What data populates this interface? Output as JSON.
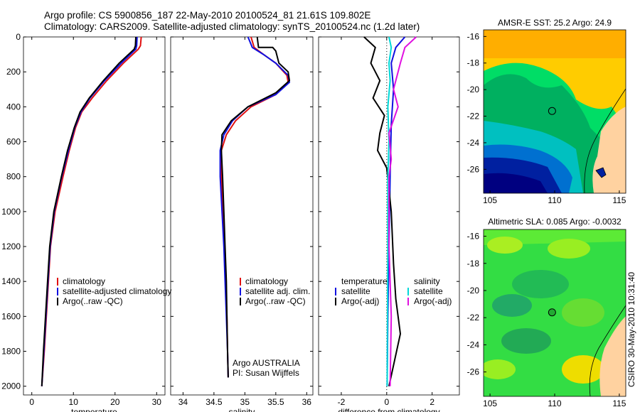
{
  "header": {
    "line1": "Argo profile: CS 5900856_187 22-May-2010 20100524_81 21.61S 109.802E",
    "line2": "Climatology: CARS2009. Satellite-adjusted climatology: synTS_20100524.nc (1.2d later)"
  },
  "side_label": "CSIRO 30-May-2010 10:31:40",
  "colors": {
    "climatology": "#e01010",
    "satellite": "#1010e0",
    "argo": "#000000",
    "sat_diff": "#00d8d8",
    "argo_adj": "#e010e0"
  },
  "chart_data": [
    {
      "type": "line",
      "xlabel": "temperature",
      "xlim": [
        -2,
        32
      ],
      "ylim": [
        0,
        2050
      ],
      "y_reversed": true,
      "xticks": [
        0,
        10,
        20,
        30
      ],
      "yticks": [
        0,
        200,
        400,
        600,
        800,
        1000,
        1200,
        1400,
        1600,
        1800,
        2000
      ],
      "legend": [
        "climatology",
        "satellite-adjusted climatology",
        "Argo(..raw -QC)"
      ],
      "series": [
        {
          "name": "climatology",
          "color": "#e01010",
          "points": [
            [
              26.3,
              0
            ],
            [
              26.1,
              50
            ],
            [
              25.6,
              70
            ],
            [
              22,
              150
            ],
            [
              18,
              250
            ],
            [
              14.5,
              350
            ],
            [
              12,
              430
            ],
            [
              10.5,
              520
            ],
            [
              9,
              650
            ],
            [
              7.5,
              800
            ],
            [
              5.6,
              1000
            ],
            [
              4.5,
              1200
            ],
            [
              4,
              1400
            ],
            [
              3.5,
              1600
            ],
            [
              3,
              1800
            ],
            [
              2.4,
              2000
            ]
          ]
        },
        {
          "name": "satellite-adjusted climatology",
          "color": "#1010e0",
          "points": [
            [
              25.3,
              0
            ],
            [
              25.2,
              50
            ],
            [
              25,
              70
            ],
            [
              21.5,
              150
            ],
            [
              17.5,
              250
            ],
            [
              14,
              350
            ],
            [
              11.8,
              430
            ],
            [
              10.3,
              520
            ],
            [
              8.8,
              650
            ],
            [
              7.2,
              800
            ],
            [
              5.4,
              1000
            ],
            [
              4.4,
              1200
            ],
            [
              3.9,
              1400
            ],
            [
              3.4,
              1600
            ],
            [
              2.9,
              1800
            ],
            [
              2.4,
              2000
            ]
          ]
        },
        {
          "name": "Argo(..raw -QC)",
          "color": "#000000",
          "points": [
            [
              25,
              0
            ],
            [
              24.9,
              50
            ],
            [
              24.6,
              70
            ],
            [
              21,
              150
            ],
            [
              17.2,
              250
            ],
            [
              13.8,
              350
            ],
            [
              11.6,
              430
            ],
            [
              10.2,
              520
            ],
            [
              8.6,
              650
            ],
            [
              7.1,
              800
            ],
            [
              5.3,
              1000
            ],
            [
              4.3,
              1200
            ],
            [
              3.8,
              1400
            ],
            [
              3.3,
              1600
            ],
            [
              2.8,
              1800
            ],
            [
              2.4,
              2000
            ]
          ]
        }
      ]
    },
    {
      "type": "line",
      "xlabel": "salinity",
      "xlim": [
        33.8,
        36.1
      ],
      "ylim": [
        0,
        2050
      ],
      "y_reversed": true,
      "xticks": [
        34,
        34.5,
        35,
        35.5,
        36
      ],
      "legend": [
        "climatology",
        "satellite adj. clim.",
        "Argo(..raw -QC)"
      ],
      "annotation": [
        "Argo AUSTRALIA",
        "PI: Susan Wijffels"
      ],
      "series": [
        {
          "name": "climatology",
          "color": "#e01010",
          "points": [
            [
              35.1,
              0
            ],
            [
              35.15,
              60
            ],
            [
              35.3,
              100
            ],
            [
              35.5,
              150
            ],
            [
              35.68,
              220
            ],
            [
              35.7,
              260
            ],
            [
              35.5,
              330
            ],
            [
              35.1,
              400
            ],
            [
              34.85,
              480
            ],
            [
              34.7,
              560
            ],
            [
              34.62,
              650
            ],
            [
              34.62,
              800
            ],
            [
              34.64,
              1000
            ],
            [
              34.67,
              1200
            ],
            [
              34.69,
              1400
            ],
            [
              34.71,
              1600
            ],
            [
              34.72,
              1800
            ],
            [
              34.73,
              1950
            ]
          ]
        },
        {
          "name": "satellite adj. clim.",
          "color": "#1010e0",
          "points": [
            [
              35.05,
              0
            ],
            [
              35.12,
              60
            ],
            [
              35.3,
              100
            ],
            [
              35.5,
              150
            ],
            [
              35.7,
              220
            ],
            [
              35.72,
              260
            ],
            [
              35.5,
              330
            ],
            [
              35.05,
              400
            ],
            [
              34.8,
              480
            ],
            [
              34.66,
              560
            ],
            [
              34.6,
              650
            ],
            [
              34.6,
              800
            ],
            [
              34.63,
              1000
            ],
            [
              34.66,
              1200
            ],
            [
              34.68,
              1400
            ],
            [
              34.7,
              1600
            ],
            [
              34.72,
              1800
            ],
            [
              34.73,
              1950
            ]
          ]
        },
        {
          "name": "Argo(..raw -QC)",
          "color": "#000000",
          "points": [
            [
              35.2,
              0
            ],
            [
              35.22,
              60
            ],
            [
              35.45,
              60
            ],
            [
              35.5,
              80
            ],
            [
              35.55,
              150
            ],
            [
              35.7,
              200
            ],
            [
              35.72,
              250
            ],
            [
              35.5,
              320
            ],
            [
              35.05,
              400
            ],
            [
              34.78,
              480
            ],
            [
              34.63,
              560
            ],
            [
              34.62,
              650
            ],
            [
              34.64,
              800
            ],
            [
              34.66,
              1000
            ],
            [
              34.68,
              1200
            ],
            [
              34.7,
              1400
            ],
            [
              34.71,
              1600
            ],
            [
              34.72,
              1800
            ],
            [
              34.73,
              1950
            ]
          ]
        }
      ]
    },
    {
      "type": "line",
      "xlabel": "difference from climatology",
      "xlim": [
        -3,
        3.2
      ],
      "ylim": [
        0,
        2050
      ],
      "y_reversed": true,
      "xticks": [
        -2,
        0,
        2
      ],
      "legend_groups": [
        [
          "temperature",
          "satellite",
          "Argo(-adj)"
        ],
        [
          "salinity",
          "satellite",
          "Argo(-adj)"
        ]
      ],
      "series": [
        {
          "name": "temperature satellite",
          "color": "#1010e0",
          "points": [
            [
              0.8,
              0
            ],
            [
              0.4,
              60
            ],
            [
              0.2,
              150
            ],
            [
              0.3,
              300
            ],
            [
              0.2,
              500
            ],
            [
              0.15,
              800
            ],
            [
              0.1,
              1200
            ],
            [
              0.05,
              1600
            ],
            [
              0.02,
              2000
            ]
          ]
        },
        {
          "name": "temperature Argo(-adj)",
          "color": "#000000",
          "points": [
            [
              -1,
              0
            ],
            [
              -0.5,
              60
            ],
            [
              -0.7,
              150
            ],
            [
              -0.3,
              250
            ],
            [
              -0.6,
              350
            ],
            [
              -0.1,
              450
            ],
            [
              -0.3,
              550
            ],
            [
              -0.4,
              650
            ],
            [
              0,
              750
            ],
            [
              0.2,
              1000
            ],
            [
              0.3,
              1300
            ],
            [
              0.4,
              1500
            ],
            [
              0.6,
              1700
            ],
            [
              0.1,
              2000
            ]
          ]
        },
        {
          "name": "salinity satellite",
          "color": "#00d8d8",
          "points": [
            [
              0.1,
              0
            ],
            [
              0.2,
              60
            ],
            [
              0.1,
              150
            ],
            [
              0.15,
              250
            ],
            [
              0.05,
              400
            ],
            [
              0.1,
              600
            ],
            [
              0.05,
              800
            ],
            [
              0.05,
              1200
            ],
            [
              0.02,
              2000
            ]
          ]
        },
        {
          "name": "salinity Argo(-adj)",
          "color": "#e010e0",
          "points": [
            [
              1.3,
              0
            ],
            [
              0.8,
              60
            ],
            [
              0.6,
              150
            ],
            [
              0.3,
              300
            ],
            [
              0.5,
              400
            ],
            [
              0.1,
              550
            ],
            [
              0.2,
              700
            ],
            [
              0.1,
              800
            ],
            [
              0.1,
              1200
            ],
            [
              0.2,
              1600
            ],
            [
              0.15,
              2000
            ]
          ]
        }
      ]
    },
    {
      "type": "heatmap",
      "title": "AMSR-E SST: 25.2  Argo: 24.9",
      "xlim": [
        104.5,
        115.5
      ],
      "ylim": [
        -27.8,
        -15.5
      ],
      "xticks": [
        105,
        110,
        115
      ],
      "yticks": [
        -16,
        -18,
        -20,
        -22,
        -24,
        -26
      ],
      "float_position": [
        109.8,
        -21.61
      ]
    },
    {
      "type": "heatmap",
      "title": "Altimetric SLA: 0.085  Argo: -0.0032",
      "xlim": [
        104.5,
        115.5
      ],
      "ylim": [
        -27.8,
        -15.5
      ],
      "xticks": [
        105,
        110,
        115
      ],
      "yticks": [
        -16,
        -18,
        -20,
        -22,
        -24,
        -26
      ],
      "float_position": [
        109.8,
        -21.61
      ]
    }
  ]
}
